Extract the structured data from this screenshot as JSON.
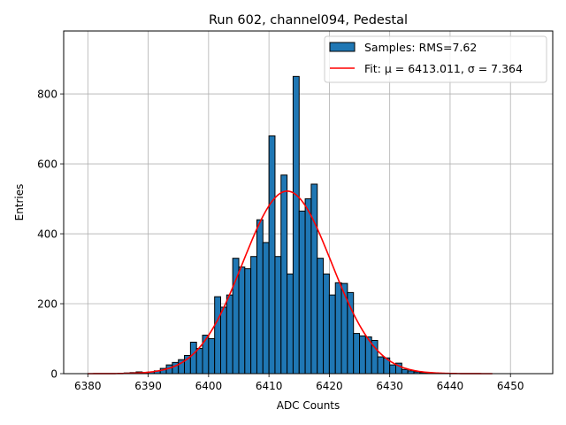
{
  "chart_data": {
    "type": "bar",
    "title": "Run 602, channel094, Pedestal",
    "xlabel": "ADC Counts",
    "ylabel": "Entries",
    "xlim": [
      6376,
      6457
    ],
    "ylim": [
      0,
      980
    ],
    "xticks": [
      6380,
      6390,
      6400,
      6410,
      6420,
      6430,
      6440,
      6450
    ],
    "yticks": [
      0,
      200,
      400,
      600,
      800
    ],
    "grid": true,
    "legend_position": "top-right",
    "colors": {
      "bars": "#1f77b4",
      "fit": "#ff0000"
    },
    "series": [
      {
        "name": "Samples: RMS=7.62",
        "type": "histogram",
        "bin_width": 1,
        "bin_starts": [
          6386,
          6387,
          6388,
          6389,
          6390,
          6391,
          6392,
          6393,
          6394,
          6395,
          6396,
          6397,
          6398,
          6399,
          6400,
          6401,
          6402,
          6403,
          6404,
          6405,
          6406,
          6407,
          6408,
          6409,
          6410,
          6411,
          6412,
          6413,
          6414,
          6415,
          6416,
          6417,
          6418,
          6419,
          6420,
          6421,
          6422,
          6423,
          6424,
          6425,
          6426,
          6427,
          6428,
          6429,
          6430,
          6431,
          6432,
          6433,
          6434,
          6435,
          6436,
          6437,
          6438
        ],
        "counts": [
          2,
          3,
          5,
          3,
          5,
          8,
          15,
          25,
          32,
          40,
          52,
          90,
          72,
          110,
          100,
          220,
          190,
          225,
          330,
          305,
          300,
          335,
          440,
          375,
          680,
          335,
          568,
          285,
          850,
          465,
          500,
          542,
          330,
          285,
          225,
          260,
          258,
          232,
          115,
          108,
          105,
          95,
          48,
          45,
          25,
          30,
          12,
          8,
          5,
          3,
          2,
          2,
          1
        ]
      },
      {
        "name": "Fit: μ = 6413.011, σ = 7.364",
        "type": "gaussian_fit",
        "mu": 6413.011,
        "sigma": 7.364,
        "amplitude": 522,
        "x_range": [
          6380,
          6447
        ]
      }
    ]
  }
}
